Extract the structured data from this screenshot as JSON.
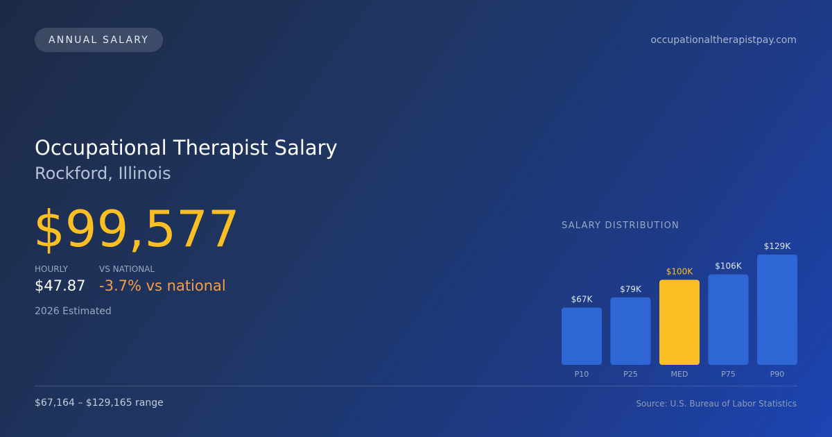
{
  "header": {
    "badge": "ANNUAL SALARY",
    "site": "occupationaltherapistpay.com"
  },
  "main": {
    "title": "Occupational Therapist Salary",
    "location": "Rockford, Illinois",
    "annual_salary": "$99,577",
    "stats": [
      {
        "label": "HOURLY",
        "value": "$47.87"
      },
      {
        "label": "VS NATIONAL",
        "value": "-3.7% vs national"
      }
    ],
    "estimate_note": "2026 Estimated"
  },
  "footer": {
    "range": "$67,164 – $129,165 range",
    "source": "Source: U.S. Bureau of Labor Statistics"
  },
  "colors": {
    "accent": "#fbbf24",
    "bar": "#2f66d6",
    "negative": "#f59e4b"
  },
  "chart_data": {
    "type": "bar",
    "title": "SALARY DISTRIBUTION",
    "categories": [
      "P10",
      "P25",
      "MED",
      "P75",
      "P90"
    ],
    "values": [
      67164,
      79000,
      99577,
      106000,
      129165
    ],
    "value_labels": [
      "$67K",
      "$79K",
      "$100K",
      "$106K",
      "$129K"
    ],
    "highlight_index": 2,
    "ylim": [
      0,
      129165
    ]
  }
}
